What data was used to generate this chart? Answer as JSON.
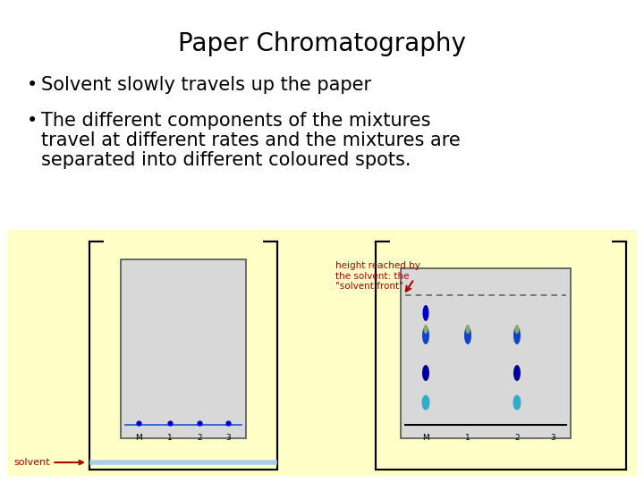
{
  "title": "Paper Chromatography",
  "bullet1": "Solvent slowly travels up the paper",
  "bullet2_line1": "The different components of the mixtures",
  "bullet2_line2": "travel at different rates and the mixtures are",
  "bullet2_line3": "separated into different coloured spots.",
  "background_color": "#ffffff",
  "panel_bg": "#ffffc8",
  "tank_edge": "#888800",
  "paper_color": "#d8d8d8",
  "solvent_label": "solvent",
  "solvent_front_label": "height reached by\nthe solvent: the\n\"solvent front\"",
  "labels_bottom": [
    "M",
    "1",
    "2",
    "3"
  ],
  "title_fontsize": 20,
  "bullet_fontsize": 15
}
